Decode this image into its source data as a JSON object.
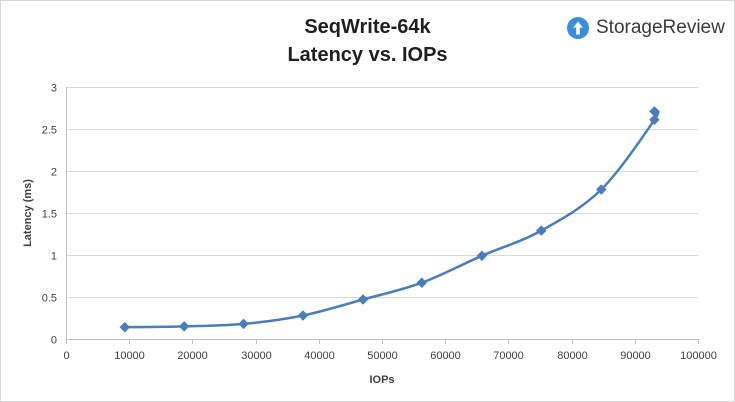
{
  "brand": {
    "name": "StorageReview",
    "icon": "storagereview-logo-icon",
    "icon_color": "#3b8fd9"
  },
  "chart_data": {
    "type": "line",
    "title": "SeqWrite-64k",
    "subtitle": "Latency vs. IOPs",
    "xlabel": "IOPs",
    "ylabel": "Latency (ms)",
    "xlim": [
      0,
      100000
    ],
    "ylim": [
      0,
      3
    ],
    "x_ticks": [
      0,
      10000,
      20000,
      30000,
      40000,
      50000,
      60000,
      70000,
      80000,
      90000,
      100000
    ],
    "y_ticks": [
      0,
      0.5,
      1,
      1.5,
      2,
      2.5,
      3
    ],
    "y_tick_labels": [
      "0",
      "0.5",
      "1",
      "1.5",
      "2",
      "2.5",
      "3"
    ],
    "grid": {
      "horizontal": true,
      "vertical": false
    },
    "legend": "none",
    "marker": "diamond",
    "series": [
      {
        "color": "#4a7ebb",
        "x": [
          9300,
          18700,
          28100,
          37500,
          47000,
          56300,
          65800,
          75200,
          84700,
          93100,
          93100
        ],
        "y": [
          0.14,
          0.15,
          0.18,
          0.28,
          0.47,
          0.67,
          0.99,
          1.29,
          1.78,
          2.61,
          2.71
        ]
      }
    ]
  }
}
